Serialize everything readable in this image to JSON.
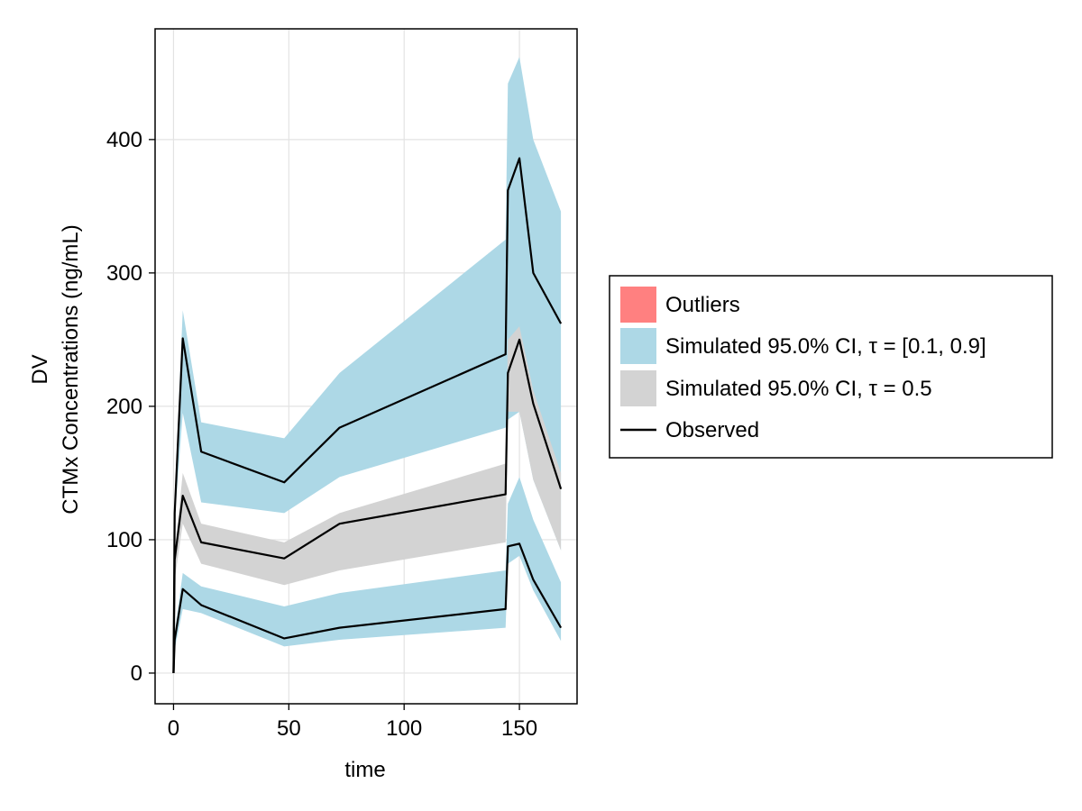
{
  "chart_data": {
    "type": "area",
    "xlabel": "time",
    "ylabel_line1": "DV",
    "ylabel_line2": "CTMx Concentrations (ng/mL)",
    "xlim": [
      -8,
      175
    ],
    "ylim": [
      -23,
      483
    ],
    "xticks": [
      0,
      50,
      100,
      150
    ],
    "yticks": [
      0,
      100,
      200,
      300,
      400
    ],
    "grid": true,
    "legend_placement": "right",
    "legend": [
      {
        "label": "Outliers",
        "kind": "patch",
        "color": "#ff8080"
      },
      {
        "label": "Simulated 95.0% CI, τ = [0.1, 0.9]",
        "kind": "patch",
        "color": "#add8e6"
      },
      {
        "label": "Simulated 95.0% CI, τ = 0.5",
        "kind": "patch",
        "color": "#d3d3d3"
      },
      {
        "label": "Observed",
        "kind": "line",
        "color": "#000000"
      }
    ],
    "bands": [
      {
        "name": "upper-90-band",
        "color": "#add8e6",
        "x": [
          0,
          0.5,
          4,
          12,
          48,
          72,
          144,
          145,
          150,
          156,
          168
        ],
        "lower": [
          0,
          115,
          195,
          128,
          120,
          147,
          184,
          190,
          196,
          145,
          92
        ],
        "upper": [
          0,
          130,
          272,
          188,
          176,
          225,
          325,
          442,
          462,
          400,
          346
        ]
      },
      {
        "name": "median-band",
        "color": "#d3d3d3",
        "x": [
          0,
          0.5,
          4,
          12,
          48,
          72,
          144,
          145,
          150,
          156,
          168
        ],
        "lower": [
          0,
          70,
          112,
          82,
          66,
          77,
          98,
          196,
          196,
          145,
          92
        ],
        "upper": [
          0,
          90,
          150,
          112,
          98,
          120,
          157,
          250,
          260,
          212,
          150
        ]
      },
      {
        "name": "lower-10-band",
        "color": "#add8e6",
        "x": [
          0,
          0.5,
          4,
          12,
          48,
          72,
          144,
          145,
          150,
          156,
          168
        ],
        "lower": [
          0,
          18,
          48,
          45,
          20,
          25,
          34,
          82,
          88,
          62,
          24
        ],
        "upper": [
          0,
          30,
          75,
          65,
          50,
          60,
          77,
          127,
          147,
          115,
          68
        ]
      }
    ],
    "series": [
      {
        "name": "Observed",
        "color": "#000000",
        "lines": [
          {
            "x": [
              0,
              0.5,
              4,
              12,
              48,
              72,
              144,
              145,
              150,
              156,
              168
            ],
            "y": [
              0,
              120,
              251,
              166,
              143,
              184,
              239,
              362,
              386,
              300,
              262
            ]
          },
          {
            "x": [
              0,
              0.5,
              4,
              12,
              48,
              72,
              144,
              145,
              150,
              156,
              168
            ],
            "y": [
              0,
              85,
              133,
              98,
              86,
              112,
              134,
              225,
              250,
              202,
              138
            ]
          },
          {
            "x": [
              0,
              0.5,
              4,
              12,
              48,
              72,
              144,
              145,
              150,
              156,
              168
            ],
            "y": [
              0,
              25,
              63,
              51,
              26,
              34,
              48,
              95,
              97,
              70,
              34
            ]
          }
        ]
      }
    ]
  }
}
